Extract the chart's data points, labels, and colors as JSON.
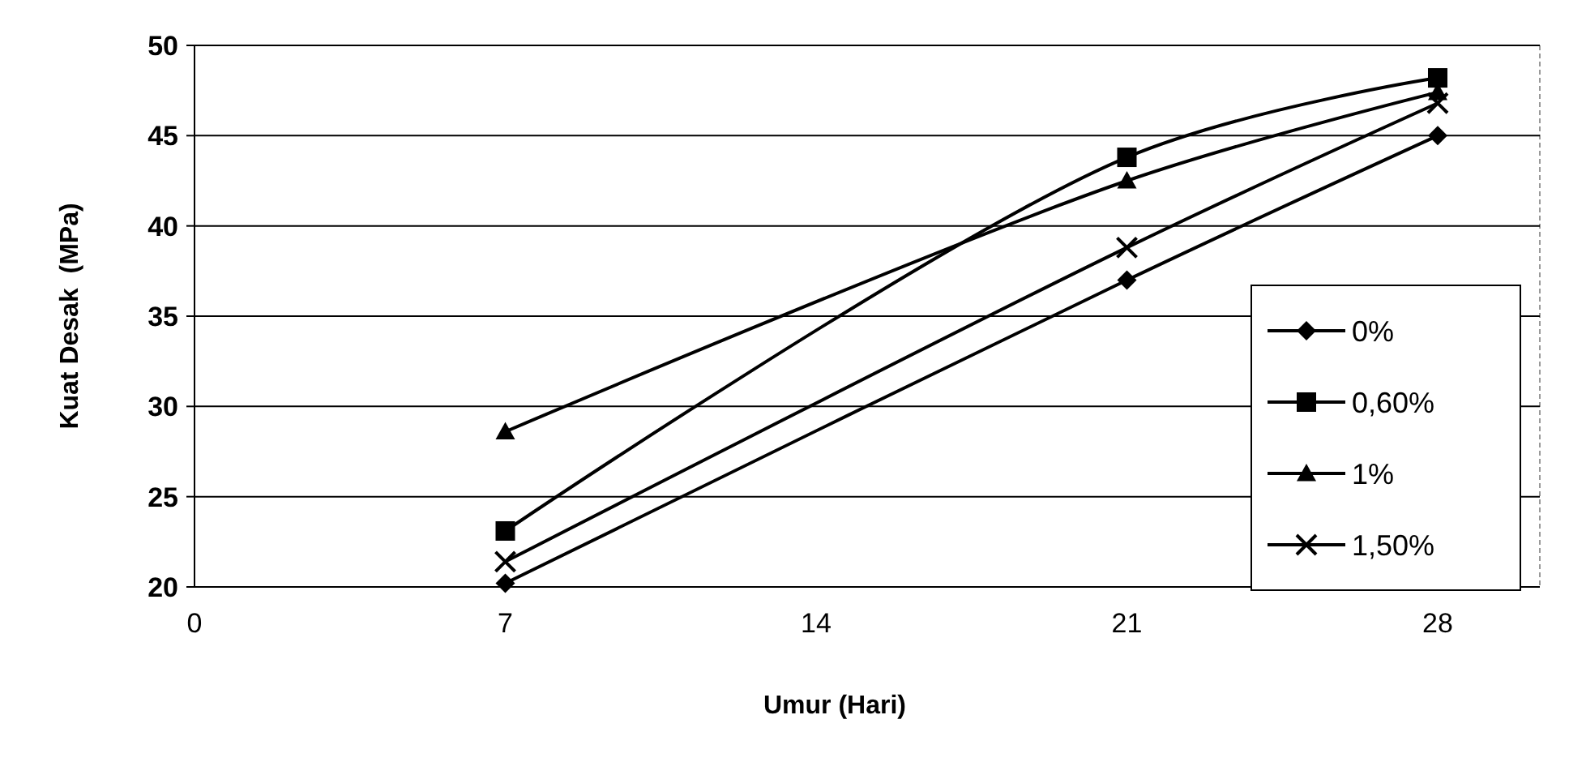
{
  "chart_data": {
    "type": "line",
    "xlabel": "Umur (Hari)",
    "ylabel": "Kuat Desak  (MPa)",
    "x": [
      7,
      21,
      28
    ],
    "series": [
      {
        "name": "0%",
        "color": "#000000",
        "marker": "diamond",
        "values": [
          20.2,
          37.0,
          45.0
        ]
      },
      {
        "name": "0,60%",
        "color": "#000000",
        "marker": "square",
        "values": [
          23.1,
          43.8,
          48.2
        ]
      },
      {
        "name": "1%",
        "color": "#000000",
        "marker": "triangle",
        "values": [
          28.6,
          42.5,
          47.4
        ]
      },
      {
        "name": "1,50%",
        "color": "#000000",
        "marker": "cross",
        "values": [
          21.4,
          38.8,
          46.8
        ]
      }
    ],
    "xlim": [
      0,
      30.3
    ],
    "xticks": [
      0,
      7,
      14,
      21,
      28
    ],
    "ylim": [
      20,
      50
    ],
    "yticks": [
      20,
      25,
      30,
      35,
      40,
      45,
      50
    ],
    "grid": "y",
    "legend": "right",
    "line_style": "solid"
  }
}
